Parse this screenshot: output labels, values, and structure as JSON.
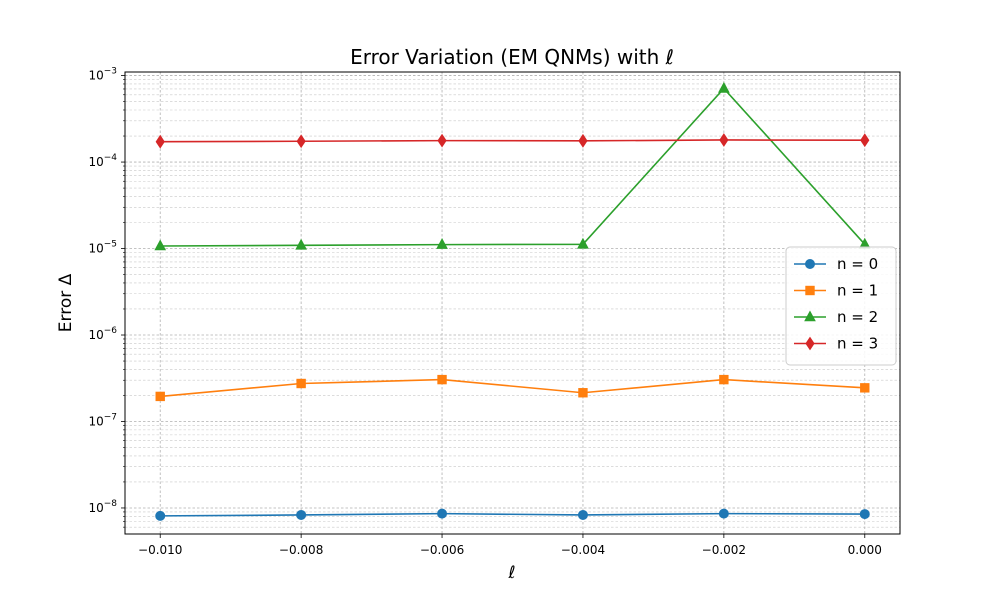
{
  "chart_data": {
    "type": "line",
    "title": "Error Variation (EM QNMs) with ℓ",
    "xlabel": "ℓ",
    "ylabel": "Error Δ",
    "y_scale": "log",
    "x": [
      -0.01,
      -0.008,
      -0.006,
      -0.004,
      -0.002,
      0.0
    ],
    "xlim": [
      -0.0105,
      0.0005
    ],
    "ylim": [
      5e-09,
      0.0011
    ],
    "x_ticks": [
      {
        "value": -0.01,
        "label": "−0.010"
      },
      {
        "value": -0.008,
        "label": "−0.008"
      },
      {
        "value": -0.006,
        "label": "−0.006"
      },
      {
        "value": -0.004,
        "label": "−0.004"
      },
      {
        "value": -0.002,
        "label": "−0.002"
      },
      {
        "value": 0.0,
        "label": "0.000"
      }
    ],
    "y_ticks": [
      {
        "value": 1e-08,
        "base": "10",
        "exp": "−8"
      },
      {
        "value": 1e-07,
        "base": "10",
        "exp": "−7"
      },
      {
        "value": 1e-06,
        "base": "10",
        "exp": "−6"
      },
      {
        "value": 1e-05,
        "base": "10",
        "exp": "−5"
      },
      {
        "value": 0.0001,
        "base": "10",
        "exp": "−4"
      },
      {
        "value": 0.001,
        "base": "10",
        "exp": "−3"
      }
    ],
    "grid": true,
    "legend_position": "center-right",
    "series": [
      {
        "name": "n = 0",
        "color": "#1f77b4",
        "marker": "circle",
        "values": [
          8.1e-09,
          8.3e-09,
          8.6e-09,
          8.3e-09,
          8.6e-09,
          8.5e-09
        ]
      },
      {
        "name": "n = 1",
        "color": "#ff7f0e",
        "marker": "square",
        "values": [
          1.95e-07,
          2.75e-07,
          3.05e-07,
          2.15e-07,
          3.05e-07,
          2.45e-07
        ]
      },
      {
        "name": "n = 2",
        "color": "#2ca02c",
        "marker": "triangle",
        "values": [
          1.07e-05,
          1.09e-05,
          1.11e-05,
          1.12e-05,
          0.00071,
          1.12e-05
        ]
      },
      {
        "name": "n = 3",
        "color": "#d62728",
        "marker": "diamond",
        "values": [
          0.000172,
          0.000174,
          0.000177,
          0.000176,
          0.00018,
          0.000179
        ]
      }
    ]
  }
}
